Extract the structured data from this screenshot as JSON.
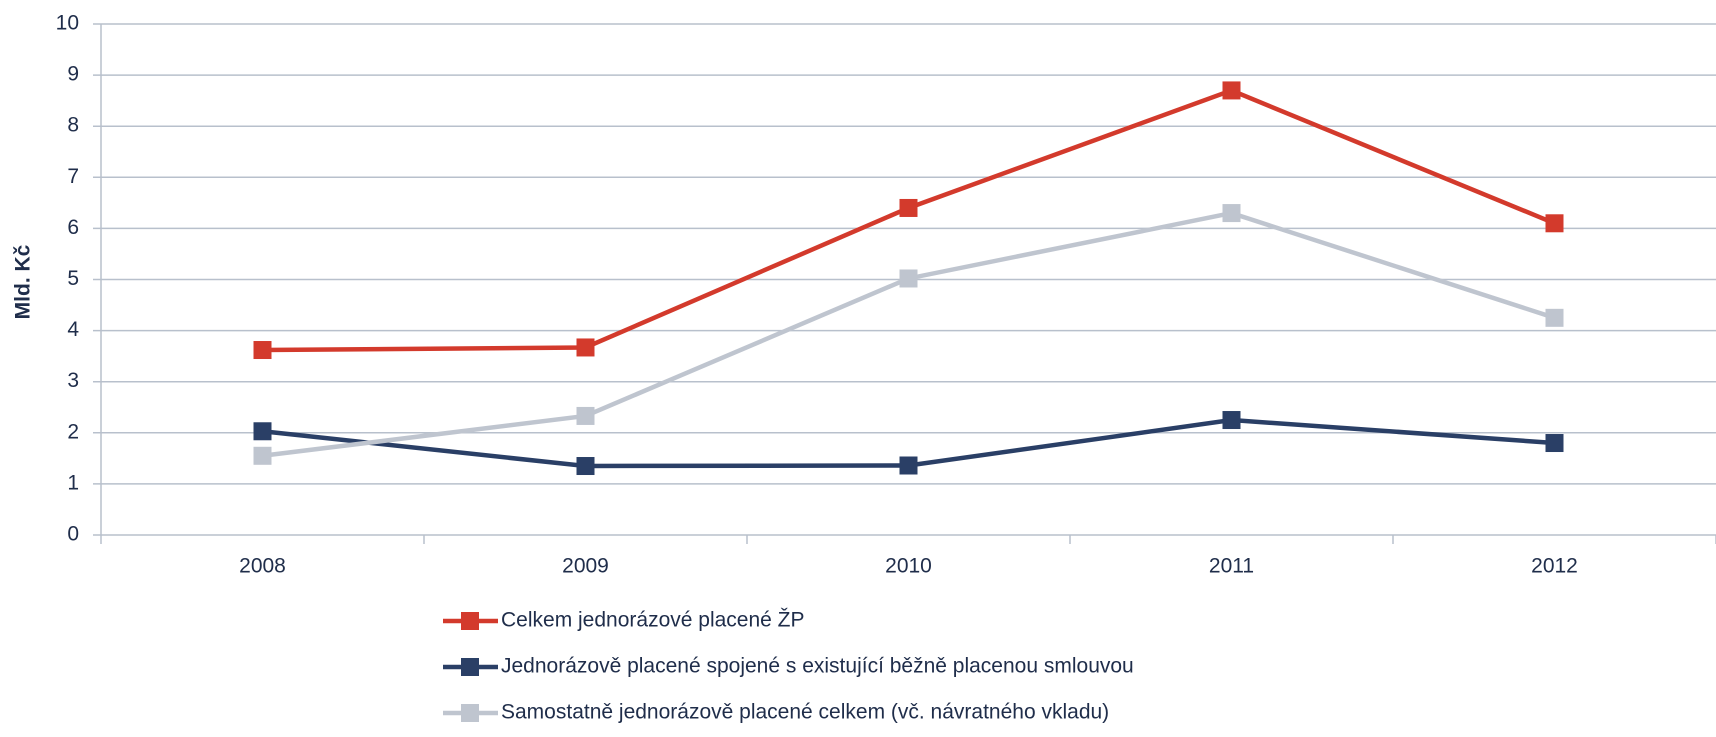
{
  "chart_data": {
    "type": "line",
    "y_label": "Mld. Kč",
    "categories": [
      "2008",
      "2009",
      "2010",
      "2011",
      "2012"
    ],
    "series": [
      {
        "name": "Celkem jednorázové placené ŽP",
        "color": "#d33a2c",
        "values": [
          3.62,
          3.67,
          6.4,
          8.7,
          6.1
        ]
      },
      {
        "name": "Jednorázově placené spojené s existující běžně placenou smlouvou",
        "color": "#2a3f66",
        "values": [
          2.03,
          1.35,
          1.36,
          2.25,
          1.8
        ]
      },
      {
        "name": "Samostatně jednorázově placené celkem (vč. návratného vkladu)",
        "color": "#bfc5cf",
        "values": [
          1.55,
          2.33,
          5.02,
          6.3,
          4.25
        ]
      }
    ],
    "ylim": [
      0,
      10
    ],
    "yticks": [
      0,
      1,
      2,
      3,
      4,
      5,
      6,
      7,
      8,
      9,
      10
    ],
    "grid": true
  }
}
